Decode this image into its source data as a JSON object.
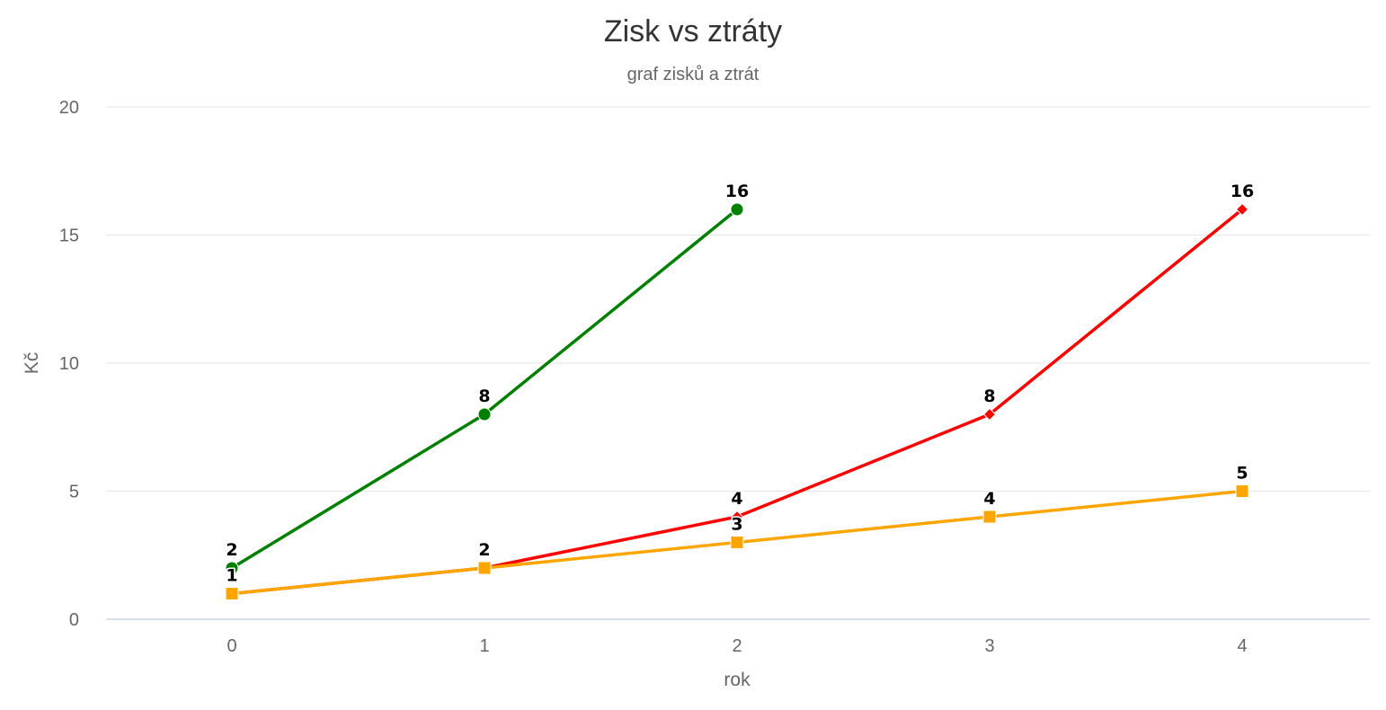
{
  "chart_data": {
    "type": "line",
    "title": "Zisk vs ztráty",
    "subtitle": "graf zisků a ztrát",
    "xlabel": "rok",
    "ylabel": "Kč",
    "categories": [
      "0",
      "1",
      "2",
      "3",
      "4"
    ],
    "x": [
      0,
      1,
      2,
      3,
      4
    ],
    "ylim": [
      0,
      20
    ],
    "yticks": [
      "0",
      "5",
      "10",
      "15",
      "20"
    ],
    "grid": true,
    "legend": "none",
    "series": [
      {
        "color": "#008000",
        "marker": "circle",
        "x": [
          0,
          1,
          2
        ],
        "values": [
          2,
          8,
          16
        ],
        "labels": [
          "2",
          "8",
          "16"
        ]
      },
      {
        "color": "#ff0000",
        "marker": "diamond",
        "x": [
          0,
          1,
          2,
          3,
          4
        ],
        "values": [
          1,
          2,
          4,
          8,
          16
        ],
        "labels": [
          "1",
          "2",
          "4",
          "8",
          "16"
        ]
      },
      {
        "color": "#ffa500",
        "marker": "square",
        "x": [
          0,
          1,
          2,
          3,
          4
        ],
        "values": [
          1,
          2,
          3,
          4,
          5
        ],
        "labels": [
          "1",
          "2",
          "3",
          "4",
          "5"
        ]
      }
    ]
  }
}
